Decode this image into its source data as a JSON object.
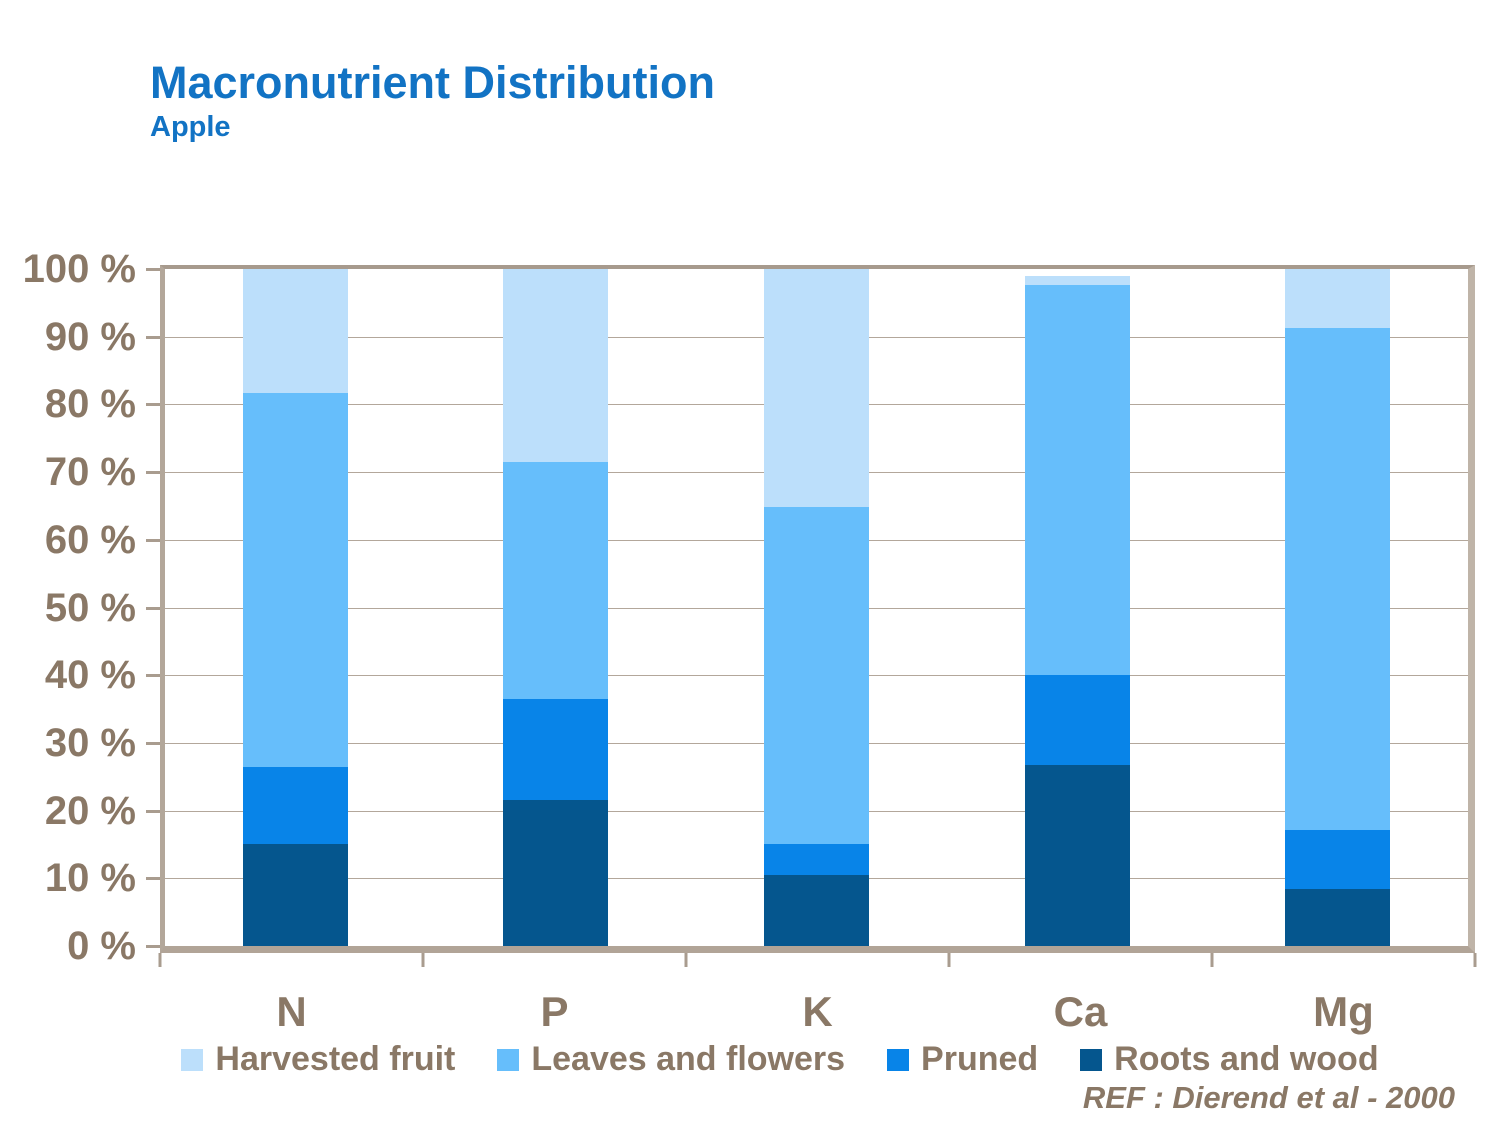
{
  "header": {
    "title": "Macronutrient Distribution",
    "subtitle": "Apple",
    "title_color": "#1273C4"
  },
  "footer": {
    "ref_text": "REF :  Dierend et al - 2000"
  },
  "colors": {
    "text_brown": "#8A7866",
    "frame_tan": "#B3A79A",
    "gridline": "#B3A79B",
    "background": "#FFFFFF"
  },
  "legend": {
    "items": [
      {
        "label": "Harvested fruit",
        "color": "#BCDFFB"
      },
      {
        "label": "Leaves and flowers",
        "color": "#66BEFB"
      },
      {
        "label": "Pruned",
        "color": "#0884E8"
      },
      {
        "label": "Roots and wood",
        "color": "#05568E"
      }
    ]
  },
  "chart_data": {
    "type": "bar",
    "stacked": true,
    "title": "Macronutrient Distribution",
    "subtitle": "Apple",
    "categories": [
      "N",
      "P",
      "K",
      "Ca",
      "Mg"
    ],
    "series": [
      {
        "name": "Harvested fruit",
        "color": "#BCDFFB",
        "values": [
          18.3,
          28.5,
          35.2,
          1.3,
          8.7
        ]
      },
      {
        "name": "Leaves and flowers",
        "color": "#66BEFB",
        "values": [
          55.3,
          35.0,
          49.8,
          57.7,
          74.2
        ]
      },
      {
        "name": "Pruned",
        "color": "#0884E8",
        "values": [
          11.4,
          15.0,
          4.5,
          13.2,
          8.7
        ]
      },
      {
        "name": "Roots and wood",
        "color": "#05568E",
        "values": [
          15.0,
          21.5,
          10.5,
          26.8,
          8.4
        ]
      }
    ],
    "stack_order_bottom_to_top": [
      "Roots and wood",
      "Pruned",
      "Leaves and flowers",
      "Harvested fruit"
    ],
    "ylim": [
      0,
      100
    ],
    "y_ticks": [
      "0 %",
      "10 %",
      "20 %",
      "30 %",
      "40 %",
      "50 %",
      "60 %",
      "70 %",
      "80 %",
      "90 %",
      "100 %"
    ],
    "grid": "horizontal",
    "legend_position": "bottom",
    "annotation": "REF :  Dierend et al - 2000"
  }
}
